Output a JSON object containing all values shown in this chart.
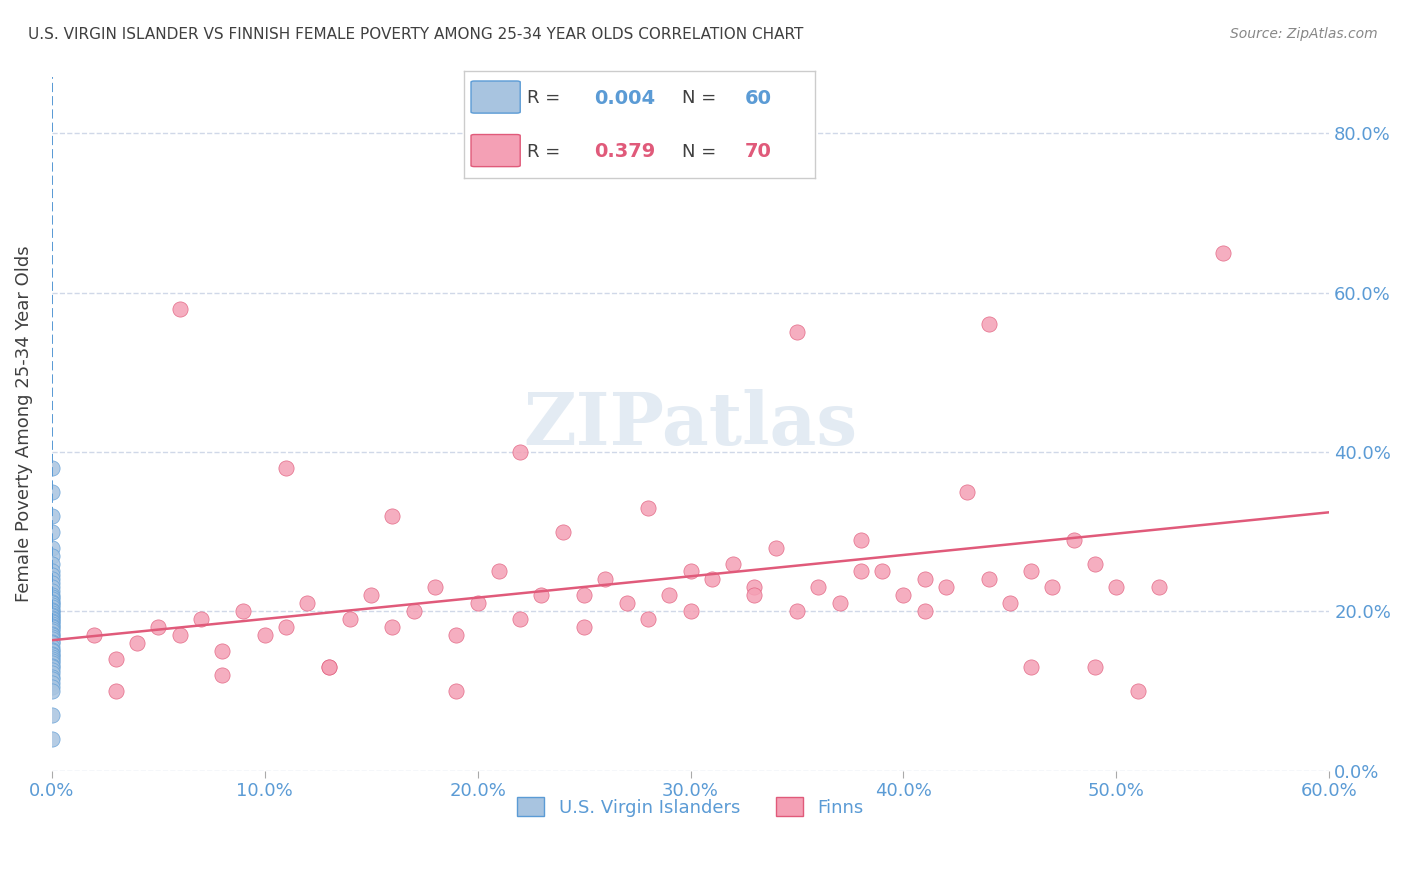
{
  "title": "U.S. VIRGIN ISLANDER VS FINNISH FEMALE POVERTY AMONG 25-34 YEAR OLDS CORRELATION CHART",
  "source": "Source: ZipAtlas.com",
  "xlabel": "",
  "ylabel": "Female Poverty Among 25-34 Year Olds",
  "legend_label1": "U.S. Virgin Islanders",
  "legend_label2": "Finns",
  "R1": 0.004,
  "N1": 60,
  "R2": 0.379,
  "N2": 70,
  "color1": "#a8c4e0",
  "color2": "#f4a0b5",
  "line_color1": "#5b9bd5",
  "line_color2": "#e05a7a",
  "title_color": "#404040",
  "axis_color": "#5b9bd5",
  "watermark": "ZIPatlas",
  "xlim": [
    0.0,
    0.6
  ],
  "ylim": [
    0.0,
    0.87
  ],
  "xticks": [
    0.0,
    0.1,
    0.2,
    0.3,
    0.4,
    0.5,
    0.6
  ],
  "yticks": [
    0.0,
    0.2,
    0.4,
    0.6,
    0.8
  ],
  "grid_color": "#d0d8e8",
  "background_color": "#ffffff",
  "vi_x": [
    0.0,
    0.0,
    0.0,
    0.0,
    0.0,
    0.0,
    0.0,
    0.0,
    0.0,
    0.0,
    0.0,
    0.0,
    0.0,
    0.0,
    0.0,
    0.0,
    0.0,
    0.0,
    0.0,
    0.0,
    0.0,
    0.0,
    0.0,
    0.0,
    0.0,
    0.0,
    0.0,
    0.0,
    0.0,
    0.0,
    0.0,
    0.0,
    0.0,
    0.0,
    0.0,
    0.0,
    0.0,
    0.0,
    0.0,
    0.0,
    0.0,
    0.0,
    0.0,
    0.0,
    0.0,
    0.0,
    0.0,
    0.0,
    0.0,
    0.0,
    0.0,
    0.0,
    0.0,
    0.0,
    0.0,
    0.0,
    0.0,
    0.0,
    0.0,
    0.0
  ],
  "vi_y": [
    0.38,
    0.35,
    0.32,
    0.3,
    0.28,
    0.27,
    0.26,
    0.25,
    0.245,
    0.24,
    0.235,
    0.23,
    0.225,
    0.22,
    0.218,
    0.215,
    0.212,
    0.21,
    0.208,
    0.205,
    0.202,
    0.2,
    0.198,
    0.196,
    0.194,
    0.192,
    0.19,
    0.188,
    0.186,
    0.184,
    0.182,
    0.18,
    0.178,
    0.175,
    0.172,
    0.17,
    0.168,
    0.165,
    0.162,
    0.16,
    0.155,
    0.152,
    0.15,
    0.147,
    0.145,
    0.143,
    0.14,
    0.138,
    0.135,
    0.132,
    0.13,
    0.126,
    0.122,
    0.118,
    0.115,
    0.11,
    0.105,
    0.1,
    0.07,
    0.04
  ],
  "finn_x": [
    0.02,
    0.03,
    0.04,
    0.05,
    0.06,
    0.07,
    0.08,
    0.09,
    0.1,
    0.11,
    0.12,
    0.13,
    0.14,
    0.15,
    0.16,
    0.17,
    0.18,
    0.19,
    0.2,
    0.21,
    0.22,
    0.23,
    0.24,
    0.25,
    0.26,
    0.27,
    0.28,
    0.29,
    0.3,
    0.31,
    0.32,
    0.33,
    0.34,
    0.35,
    0.36,
    0.37,
    0.38,
    0.39,
    0.4,
    0.41,
    0.42,
    0.43,
    0.44,
    0.45,
    0.46,
    0.47,
    0.48,
    0.49,
    0.5,
    0.51,
    0.03,
    0.08,
    0.13,
    0.19,
    0.25,
    0.3,
    0.35,
    0.41,
    0.46,
    0.52,
    0.06,
    0.11,
    0.16,
    0.22,
    0.28,
    0.33,
    0.38,
    0.44,
    0.49,
    0.55
  ],
  "finn_y": [
    0.17,
    0.14,
    0.16,
    0.18,
    0.17,
    0.19,
    0.15,
    0.2,
    0.17,
    0.18,
    0.21,
    0.13,
    0.19,
    0.22,
    0.18,
    0.2,
    0.23,
    0.17,
    0.21,
    0.25,
    0.19,
    0.22,
    0.3,
    0.18,
    0.24,
    0.21,
    0.19,
    0.22,
    0.2,
    0.24,
    0.26,
    0.23,
    0.28,
    0.2,
    0.23,
    0.21,
    0.29,
    0.25,
    0.22,
    0.2,
    0.23,
    0.35,
    0.24,
    0.21,
    0.25,
    0.23,
    0.29,
    0.26,
    0.23,
    0.1,
    0.1,
    0.12,
    0.13,
    0.1,
    0.22,
    0.25,
    0.55,
    0.24,
    0.13,
    0.23,
    0.58,
    0.38,
    0.32,
    0.4,
    0.33,
    0.22,
    0.25,
    0.56,
    0.13,
    0.65
  ]
}
